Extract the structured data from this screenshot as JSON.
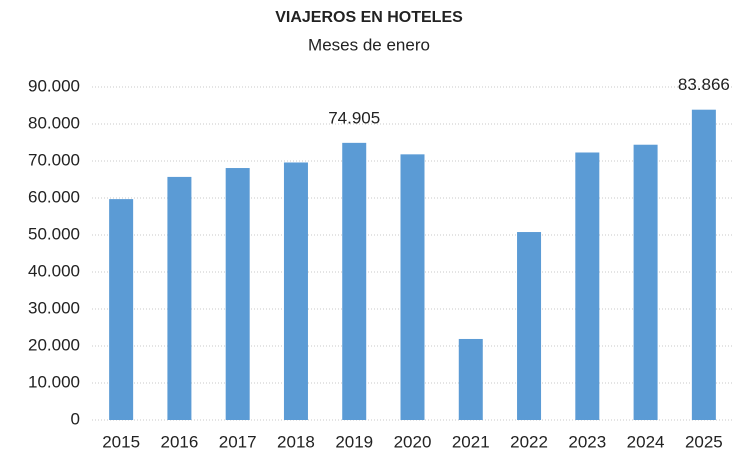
{
  "chart_data": {
    "type": "bar",
    "title": "VIAJEROS EN HOTELES",
    "subtitle": "Meses de enero",
    "categories": [
      "2015",
      "2016",
      "2017",
      "2018",
      "2019",
      "2020",
      "2021",
      "2022",
      "2023",
      "2024",
      "2025"
    ],
    "values": [
      59700,
      65700,
      68100,
      69600,
      74905,
      71800,
      21900,
      50800,
      72300,
      74400,
      83866
    ],
    "value_labels": [
      null,
      null,
      null,
      null,
      "74.905",
      null,
      null,
      null,
      null,
      null,
      "83.866"
    ],
    "color": "#5b9bd5",
    "ylim": [
      0,
      90000
    ],
    "yticks": [
      0,
      {
        "value": 10000,
        "label": "10.000"
      },
      {
        "value": 20000,
        "label": "20.000"
      },
      {
        "value": 30000,
        "label": "30.000"
      },
      {
        "value": 40000,
        "label": "40.000"
      },
      {
        "value": 50000,
        "label": "50.000"
      },
      {
        "value": 60000,
        "label": "60.000"
      },
      {
        "value": 70000,
        "label": "70.000"
      },
      {
        "value": 80000,
        "label": "80.000"
      },
      {
        "value": 90000,
        "label": "90.000"
      }
    ],
    "grid": true
  }
}
